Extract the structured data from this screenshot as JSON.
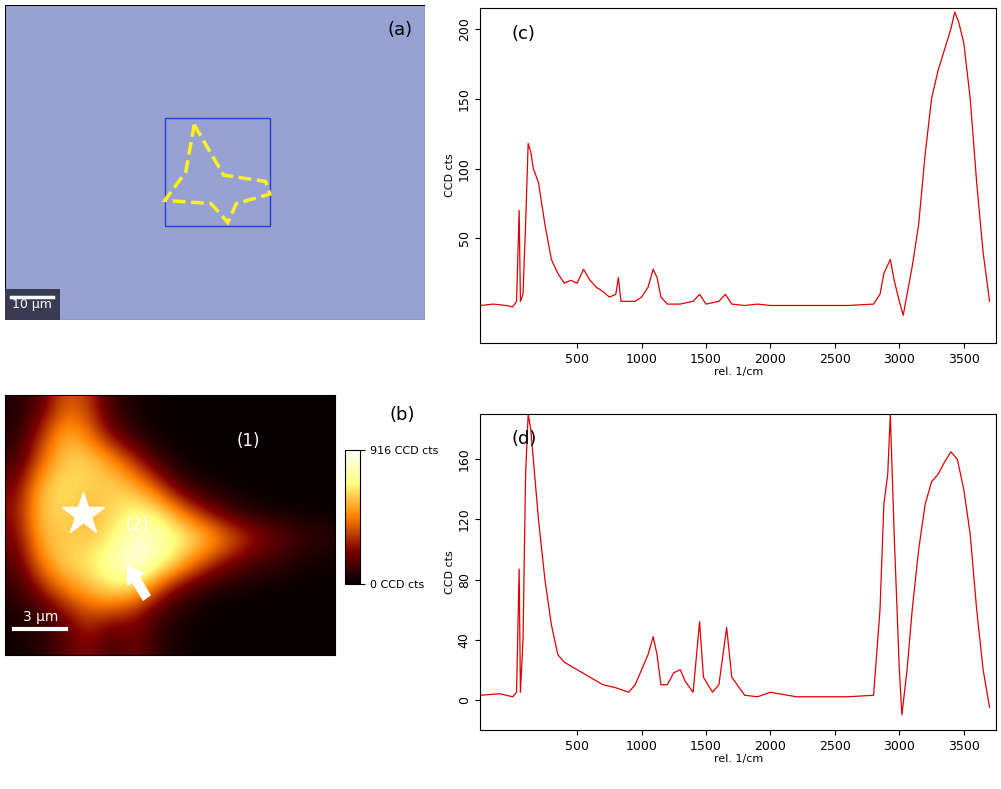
{
  "chart_data": [
    {
      "type": "image",
      "label": "(a)",
      "scale_bar": "10 µm"
    },
    {
      "type": "heatmap",
      "label": "(b)",
      "annotations": [
        "(1)",
        "(2)"
      ],
      "scale_bar": "3 µm",
      "cells": [
        [
          50,
          150,
          400,
          350,
          100,
          40,
          20,
          15,
          15,
          15,
          15,
          15,
          15,
          15
        ],
        [
          60,
          300,
          550,
          450,
          200,
          60,
          20,
          15,
          15,
          15,
          15,
          15,
          15,
          15
        ],
        [
          100,
          400,
          600,
          620,
          500,
          300,
          80,
          20,
          15,
          15,
          15,
          15,
          15,
          15
        ],
        [
          200,
          550,
          650,
          600,
          620,
          550,
          350,
          100,
          30,
          20,
          15,
          15,
          15,
          15
        ],
        [
          250,
          600,
          620,
          550,
          600,
          700,
          650,
          450,
          250,
          100,
          40,
          20,
          15,
          15
        ],
        [
          200,
          550,
          600,
          580,
          650,
          850,
          800,
          700,
          600,
          450,
          300,
          200,
          120,
          80
        ],
        [
          150,
          450,
          620,
          650,
          780,
          900,
          750,
          550,
          350,
          200,
          120,
          80,
          40,
          20
        ],
        [
          80,
          250,
          450,
          550,
          650,
          600,
          350,
          150,
          60,
          30,
          20,
          15,
          15,
          15
        ],
        [
          40,
          100,
          200,
          350,
          300,
          250,
          100,
          40,
          20,
          15,
          15,
          15,
          15,
          15
        ],
        [
          30,
          60,
          150,
          250,
          100,
          200,
          80,
          30,
          15,
          15,
          15,
          15,
          15,
          15
        ]
      ],
      "colorbar": {
        "range": [
          0,
          916
        ],
        "ticks": [
          {
            "value": 0,
            "label": "0 CCD cts"
          },
          {
            "value": 916,
            "label": "916 CCD cts"
          }
        ]
      }
    },
    {
      "type": "line",
      "label": "(c)",
      "color": "#e00000",
      "x_label": "rel. 1/cm",
      "y_label": "CCD cts",
      "x": [
        -250,
        -150,
        -50,
        0,
        30,
        50,
        60,
        80,
        100,
        120,
        140,
        160,
        200,
        250,
        300,
        350,
        400,
        450,
        500,
        550,
        600,
        650,
        700,
        750,
        800,
        820,
        840,
        900,
        950,
        1000,
        1050,
        1090,
        1120,
        1150,
        1200,
        1300,
        1400,
        1450,
        1500,
        1600,
        1650,
        1700,
        1800,
        1900,
        2000,
        2200,
        2400,
        2600,
        2800,
        2850,
        2880,
        2930,
        2960,
        3000,
        3030,
        3060,
        3100,
        3150,
        3200,
        3250,
        3300,
        3350,
        3400,
        3430,
        3460,
        3500,
        3550,
        3600,
        3650,
        3700
      ],
      "values": [
        2,
        3,
        2,
        1,
        5,
        70,
        5,
        10,
        60,
        118,
        112,
        100,
        90,
        60,
        35,
        25,
        18,
        20,
        18,
        28,
        20,
        15,
        12,
        8,
        10,
        22,
        5,
        5,
        5,
        8,
        15,
        28,
        22,
        8,
        3,
        3,
        5,
        10,
        3,
        5,
        10,
        3,
        2,
        3,
        2,
        2,
        2,
        2,
        3,
        10,
        25,
        35,
        20,
        5,
        -5,
        10,
        30,
        60,
        110,
        150,
        170,
        185,
        200,
        212,
        205,
        190,
        150,
        90,
        40,
        5
      ],
      "xlim": [
        -250,
        3750
      ],
      "ylim": [
        -25,
        215
      ],
      "xticks": [
        500,
        1000,
        1500,
        2000,
        2500,
        3000,
        3500
      ],
      "yticks": [
        50,
        100,
        150,
        200
      ]
    },
    {
      "type": "line",
      "label": "(d)",
      "color": "#e00000",
      "x_label": "rel. 1/cm",
      "y_label": "CCD cts",
      "x": [
        -250,
        -100,
        0,
        30,
        50,
        60,
        80,
        100,
        120,
        140,
        170,
        200,
        250,
        300,
        350,
        400,
        500,
        600,
        700,
        800,
        900,
        950,
        1000,
        1050,
        1090,
        1120,
        1150,
        1200,
        1250,
        1300,
        1340,
        1400,
        1450,
        1480,
        1550,
        1600,
        1660,
        1700,
        1800,
        1900,
        2000,
        2200,
        2400,
        2600,
        2800,
        2850,
        2880,
        2910,
        2930,
        2960,
        3000,
        3020,
        3060,
        3100,
        3150,
        3200,
        3250,
        3300,
        3350,
        3400,
        3450,
        3500,
        3550,
        3600,
        3650,
        3700
      ],
      "values": [
        3,
        4,
        2,
        5,
        87,
        5,
        40,
        150,
        190,
        180,
        150,
        120,
        80,
        50,
        30,
        25,
        20,
        15,
        10,
        8,
        5,
        10,
        20,
        30,
        42,
        30,
        10,
        10,
        18,
        20,
        12,
        5,
        52,
        15,
        5,
        10,
        48,
        15,
        3,
        2,
        5,
        2,
        2,
        2,
        3,
        60,
        130,
        150,
        190,
        110,
        20,
        -10,
        20,
        60,
        100,
        130,
        145,
        150,
        158,
        165,
        160,
        140,
        110,
        60,
        20,
        -5
      ],
      "xlim": [
        -250,
        3750
      ],
      "ylim": [
        -20,
        190
      ],
      "xticks": [
        500,
        1000,
        1500,
        2000,
        2500,
        3000,
        3500
      ],
      "yticks": [
        0,
        40,
        80,
        120,
        160
      ]
    }
  ]
}
